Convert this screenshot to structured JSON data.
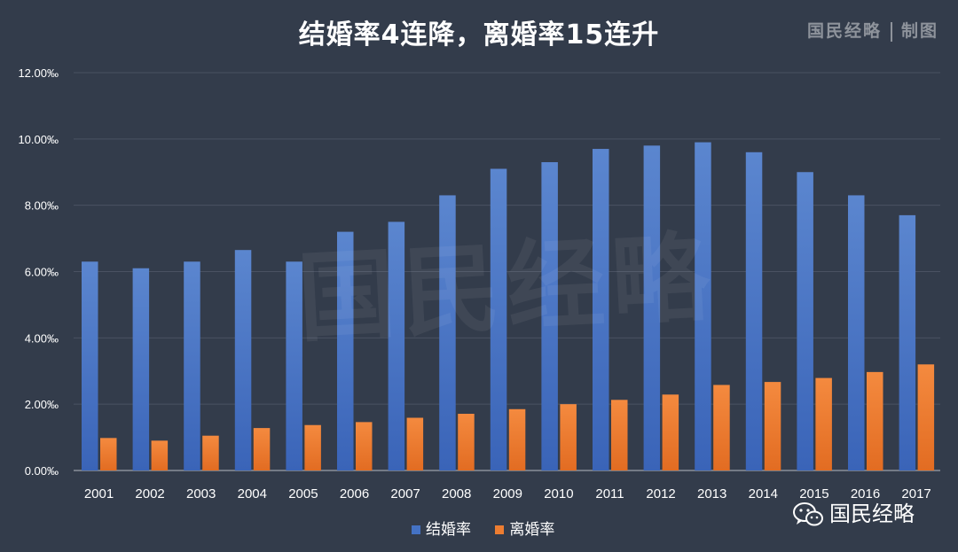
{
  "header": {
    "title": "结婚率4连降，离婚率15连升",
    "credit_left": "国民经略",
    "credit_right": "制图",
    "watermark": "国民经略"
  },
  "chart_data": {
    "type": "bar",
    "title": "结婚率4连降，离婚率15连升",
    "xlabel": "",
    "ylabel": "",
    "categories": [
      "2001",
      "2002",
      "2003",
      "2004",
      "2005",
      "2006",
      "2007",
      "2008",
      "2009",
      "2010",
      "2011",
      "2012",
      "2013",
      "2014",
      "2015",
      "2016",
      "2017"
    ],
    "series": [
      {
        "name": "结婚率",
        "color": "#4472c4",
        "values": [
          6.3,
          6.1,
          6.3,
          6.65,
          6.3,
          7.2,
          7.5,
          8.3,
          9.1,
          9.3,
          9.7,
          9.8,
          9.9,
          9.6,
          9.0,
          8.3,
          7.7
        ]
      },
      {
        "name": "离婚率",
        "color": "#ed7d31",
        "values": [
          0.98,
          0.9,
          1.05,
          1.28,
          1.37,
          1.46,
          1.59,
          1.71,
          1.85,
          2.0,
          2.13,
          2.29,
          2.58,
          2.67,
          2.79,
          2.97,
          3.2
        ]
      }
    ],
    "ylim": [
      0,
      12
    ],
    "yticks": [
      "0.00‰",
      "2.00‰",
      "4.00‰",
      "6.00‰",
      "8.00‰",
      "10.00‰",
      "12.00‰"
    ],
    "grid": true,
    "legend": "bottom-center"
  },
  "legend": {
    "items": [
      {
        "label": "结婚率",
        "color": "#4472c4"
      },
      {
        "label": "离婚率",
        "color": "#ed7d31"
      }
    ]
  },
  "logo": {
    "text": "国民经略",
    "icon": "wechat-icon"
  }
}
